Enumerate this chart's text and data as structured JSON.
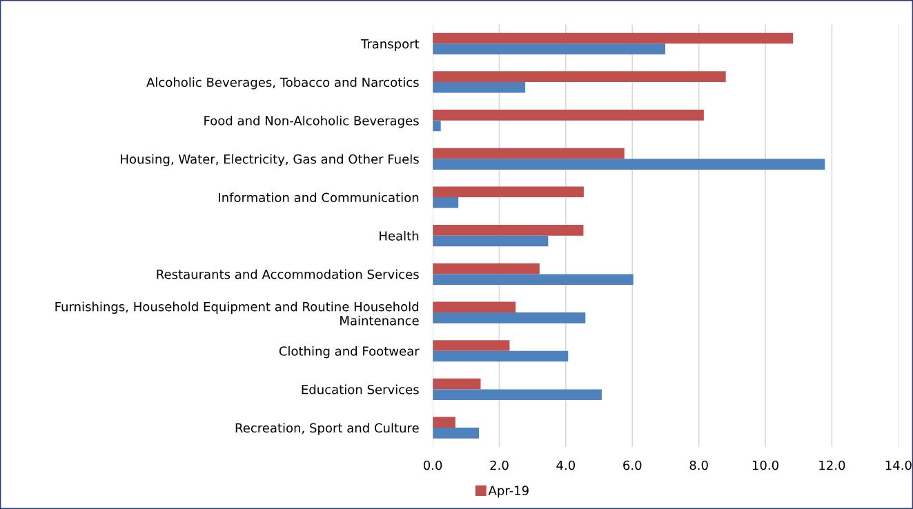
{
  "chart_data": {
    "type": "bar",
    "orientation": "horizontal",
    "categories": [
      "Transport",
      "Alcoholic Beverages, Tobacco and Narcotics",
      "Food and Non-Alcoholic Beverages",
      "Housing, Water, Electricity, Gas and Other Fuels",
      "Information and Communication",
      "Health",
      "Restaurants and Accommodation Services",
      "Furnishings, Household Equipment and Routine Household Maintenance",
      "Clothing and Footwear",
      "Education Services",
      "Recreation, Sport and Culture"
    ],
    "series": [
      {
        "name": "Apr-19",
        "color": "#c0504d",
        "values": [
          10.83,
          8.81,
          8.15,
          5.76,
          4.54,
          4.53,
          3.21,
          2.49,
          2.31,
          1.44,
          0.68
        ]
      },
      {
        "color": "#4f81bd",
        "values": [
          6.99,
          2.78,
          0.24,
          11.79,
          0.77,
          3.47,
          6.03,
          4.59,
          4.07,
          5.08,
          1.39
        ]
      }
    ],
    "xlim": [
      0,
      14
    ],
    "xticks": [
      {
        "value": 0,
        "label": "0.0"
      },
      {
        "value": 2,
        "label": "2.0"
      },
      {
        "value": 4,
        "label": "4.0"
      },
      {
        "value": 6,
        "label": "6.0"
      },
      {
        "value": 8,
        "label": "8.0"
      },
      {
        "value": 10,
        "label": "10.0"
      },
      {
        "value": 12,
        "label": "12.0"
      },
      {
        "value": 14,
        "label": "14.0"
      }
    ],
    "grid": "x",
    "legend": "bottom"
  }
}
